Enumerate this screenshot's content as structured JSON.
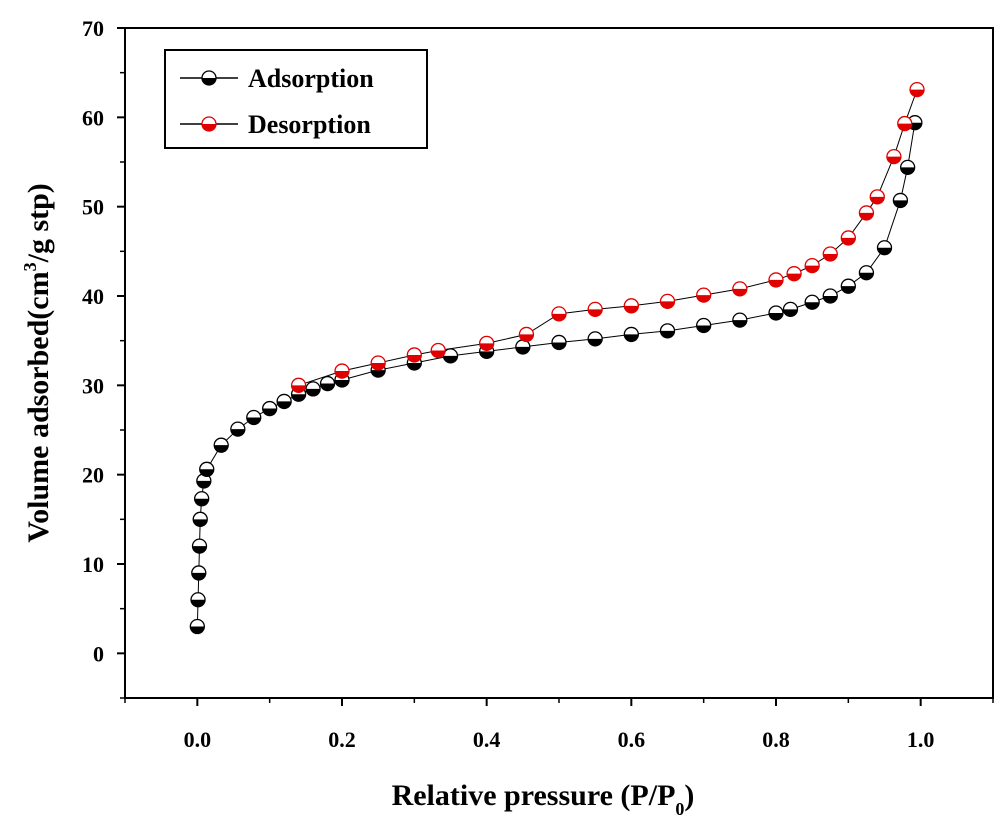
{
  "chart_data": {
    "type": "scatter",
    "xlabel": "Relative pressure (P/P",
    "xlabel_subscript": "0",
    "xlabel_close": ")",
    "ylabel": "Volume adsorbed(cm",
    "ylabel_superscript": "3",
    "ylabel_tail": "/g stp)",
    "xlim": [
      -0.1,
      1.1
    ],
    "ylim": [
      -5,
      70
    ],
    "x_ticks": [
      "0.0",
      "0.2",
      "0.4",
      "0.6",
      "0.8",
      "1.0"
    ],
    "x_tick_values": [
      0,
      0.2,
      0.4,
      0.6,
      0.8,
      1.0
    ],
    "y_ticks": [
      "0",
      "10",
      "20",
      "30",
      "40",
      "50",
      "60",
      "70"
    ],
    "y_tick_values": [
      0,
      10,
      20,
      30,
      40,
      50,
      60,
      70
    ],
    "grid": false,
    "legend_position": "top-left",
    "series": [
      {
        "name": "Adsorption",
        "color": "#000000",
        "x": [
          0.0,
          0.001,
          0.002,
          0.003,
          0.004,
          0.006,
          0.009,
          0.013,
          0.033,
          0.056,
          0.078,
          0.1,
          0.12,
          0.14,
          0.16,
          0.18,
          0.2,
          0.25,
          0.3,
          0.35,
          0.4,
          0.45,
          0.5,
          0.55,
          0.6,
          0.65,
          0.7,
          0.75,
          0.8,
          0.82,
          0.85,
          0.875,
          0.9,
          0.925,
          0.95,
          0.972,
          0.982,
          0.992
        ],
        "y": [
          3.0,
          6.0,
          9.0,
          12.0,
          15.0,
          17.3,
          19.3,
          20.6,
          23.3,
          25.1,
          26.4,
          27.4,
          28.2,
          29.0,
          29.6,
          30.2,
          30.6,
          31.7,
          32.5,
          33.3,
          33.8,
          34.3,
          34.8,
          35.2,
          35.7,
          36.1,
          36.7,
          37.3,
          38.1,
          38.5,
          39.3,
          40.0,
          41.1,
          42.6,
          45.4,
          50.7,
          54.4,
          59.4
        ]
      },
      {
        "name": "Desorption",
        "color": "#e00000",
        "x": [
          0.14,
          0.2,
          0.25,
          0.3,
          0.333,
          0.4,
          0.455,
          0.5,
          0.55,
          0.6,
          0.65,
          0.7,
          0.75,
          0.8,
          0.825,
          0.85,
          0.875,
          0.9,
          0.925,
          0.94,
          0.963,
          0.978,
          0.995
        ],
        "y": [
          30.0,
          31.6,
          32.5,
          33.4,
          33.9,
          34.7,
          35.7,
          38.0,
          38.5,
          38.9,
          39.4,
          40.1,
          40.8,
          41.8,
          42.5,
          43.4,
          44.7,
          46.5,
          49.3,
          51.1,
          55.6,
          59.3,
          63.1
        ]
      }
    ]
  }
}
